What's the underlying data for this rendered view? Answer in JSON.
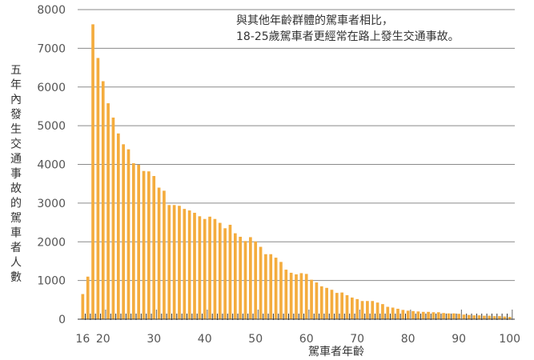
{
  "chart_data": {
    "type": "bar",
    "xlabel": "駕車者年齡",
    "ylabel": "五年內發生交通事故的駕車者人數",
    "annotation": [
      "與其他年齡群體的駕車者相比，",
      "18-25歲駕車者更經常在路上發生交通事故。"
    ],
    "ylim": [
      0,
      8000
    ],
    "yticks": [
      0,
      1000,
      2000,
      3000,
      4000,
      5000,
      6000,
      7000,
      8000
    ],
    "xticks": [
      16,
      20,
      30,
      40,
      50,
      60,
      70,
      80,
      90,
      100
    ],
    "x": [
      16,
      17,
      18,
      19,
      20,
      21,
      22,
      23,
      24,
      25,
      26,
      27,
      28,
      29,
      30,
      31,
      32,
      33,
      34,
      35,
      36,
      37,
      38,
      39,
      40,
      41,
      42,
      43,
      44,
      45,
      46,
      47,
      48,
      49,
      50,
      51,
      52,
      53,
      54,
      55,
      56,
      57,
      58,
      59,
      60,
      61,
      62,
      63,
      64,
      65,
      66,
      67,
      68,
      69,
      70,
      71,
      72,
      73,
      74,
      75,
      76,
      77,
      78,
      79,
      80,
      81,
      82,
      83,
      84,
      85,
      86,
      87,
      88,
      89,
      90,
      91,
      92,
      93,
      94,
      95,
      96,
      97,
      98,
      99,
      100
    ],
    "values": [
      650,
      1100,
      7620,
      6750,
      6150,
      5580,
      5210,
      4800,
      4520,
      4390,
      4030,
      3990,
      3830,
      3820,
      3700,
      3400,
      3320,
      2950,
      2950,
      2930,
      2850,
      2810,
      2750,
      2660,
      2590,
      2650,
      2590,
      2490,
      2350,
      2440,
      2220,
      2130,
      2020,
      2120,
      2010,
      1870,
      1680,
      1680,
      1590,
      1480,
      1280,
      1200,
      1160,
      1190,
      1170,
      1020,
      950,
      850,
      810,
      760,
      680,
      690,
      620,
      560,
      520,
      470,
      470,
      470,
      430,
      390,
      320,
      300,
      270,
      240,
      220,
      210,
      200,
      190,
      190,
      180,
      180,
      160,
      150,
      150,
      140,
      120,
      110,
      100,
      100,
      90,
      90,
      80,
      80,
      70,
      60
    ],
    "grid": true,
    "bar_color": "#f4ac3e"
  }
}
